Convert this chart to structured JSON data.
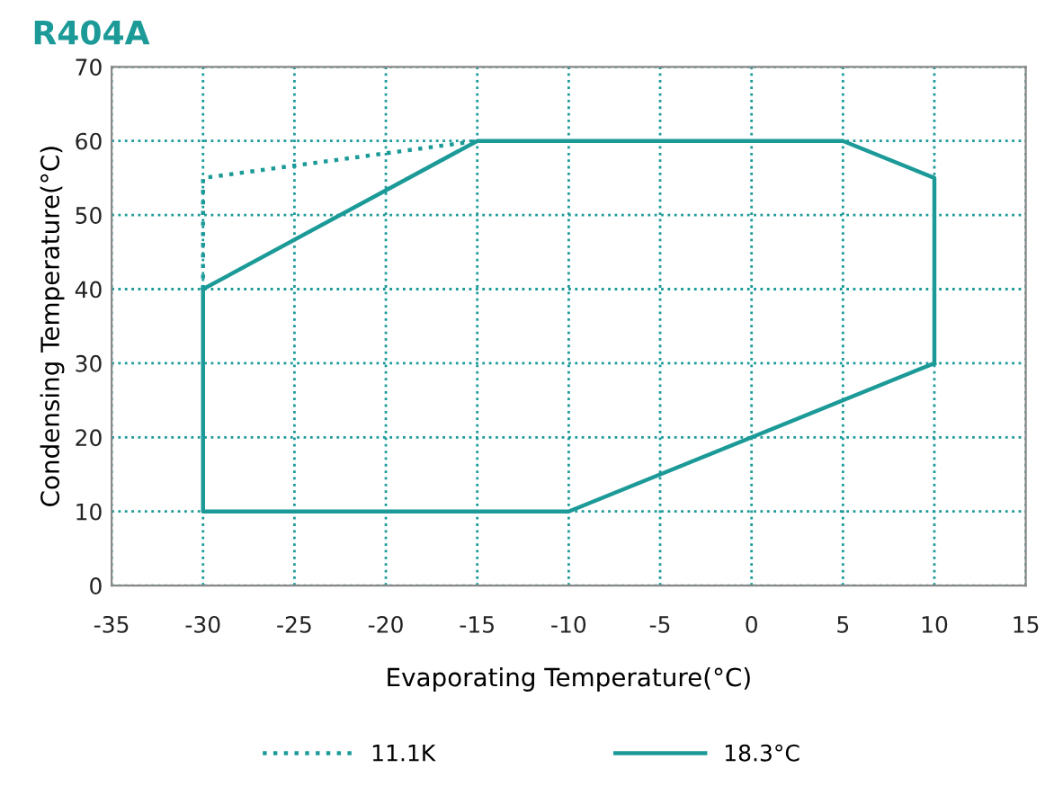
{
  "chart_data": {
    "type": "line",
    "title": "R404A",
    "xlabel": "Evaporating Temperature(°C)",
    "ylabel": "Condensing Temperature(°C)",
    "series": [
      {
        "name": "11.1K",
        "color": "#1b9a98",
        "line_style": "dotted",
        "x": [
          -30,
          -30,
          -15
        ],
        "values": [
          40,
          55,
          60
        ]
      },
      {
        "name": "18.3°C",
        "color": "#1b9a98",
        "line_style": "solid",
        "x": [
          -30,
          -15,
          5,
          10,
          10
        ],
        "values": [
          40,
          60,
          60,
          55,
          30
        ]
      },
      {
        "color": "#1b9a98",
        "line_style": "solid",
        "x": [
          -30,
          -30,
          -10,
          10
        ],
        "values": [
          40,
          10,
          10,
          30
        ]
      }
    ],
    "xlim": [
      -35,
      15
    ],
    "xticks": [
      -35,
      -30,
      -25,
      -20,
      -15,
      -10,
      -5,
      0,
      5,
      10,
      15
    ],
    "ylim": [
      0,
      70
    ],
    "yticks": [
      0,
      10,
      20,
      30,
      40,
      50,
      60,
      70
    ],
    "grid": true,
    "legend": "bottom",
    "marker": "none"
  }
}
